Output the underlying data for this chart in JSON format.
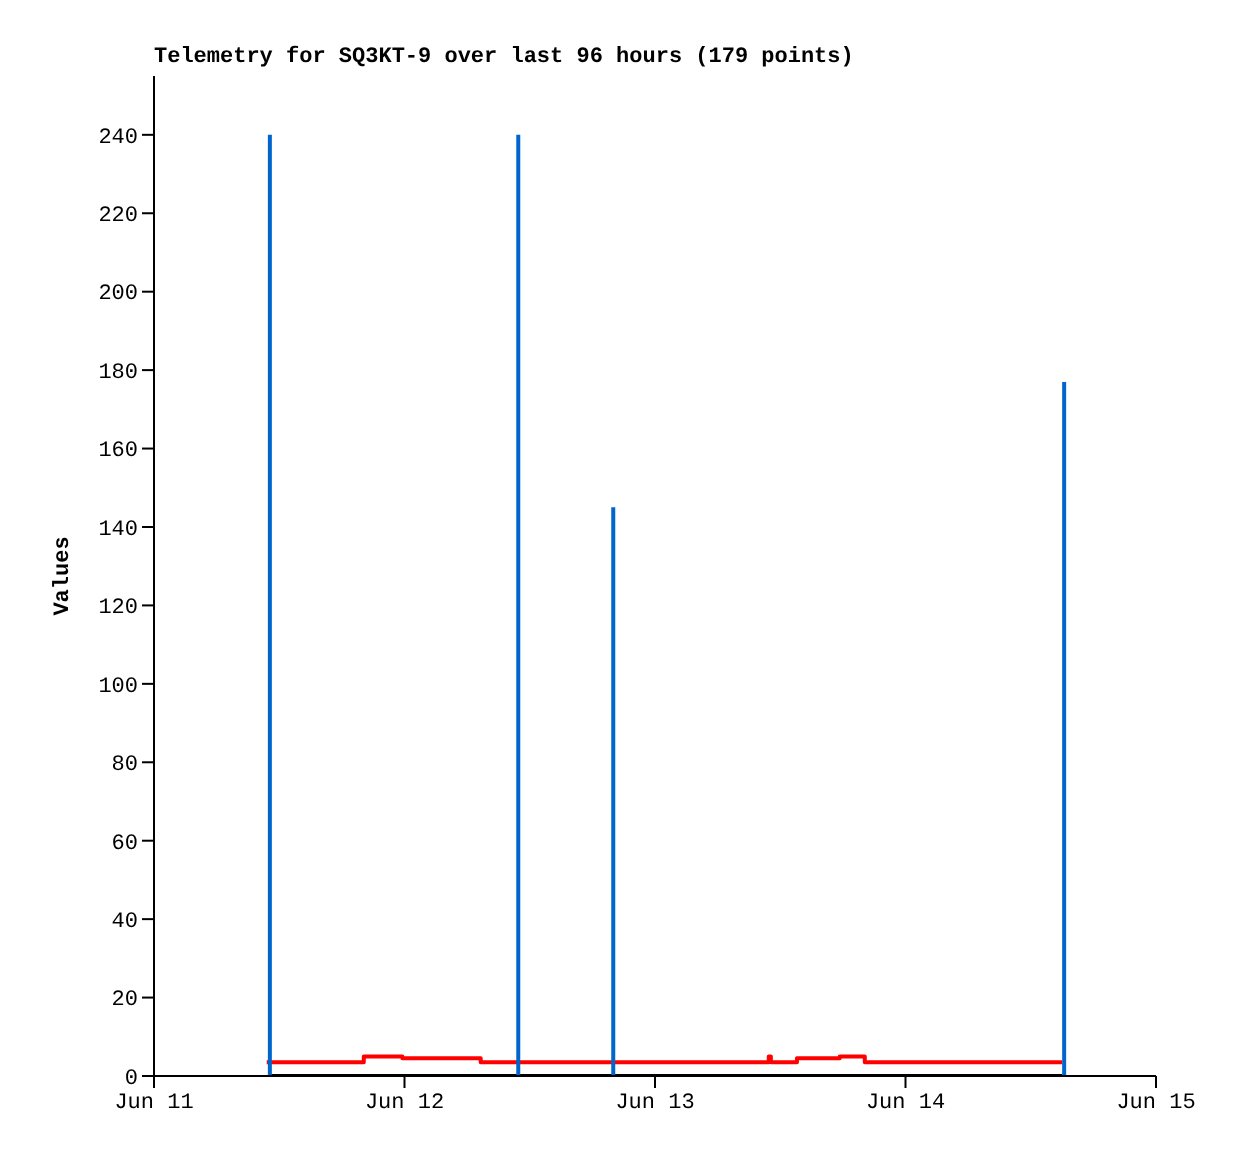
{
  "chart_data": {
    "type": "line",
    "title": "Telemetry for SQ3KT-9 over last 96 hours (179 points)",
    "ylabel": "Values",
    "xlim": [
      "--06-11",
      "--06-15"
    ],
    "xticks": [
      {
        "value": "--06-11",
        "label": "Jun 11"
      },
      {
        "value": "--06-12",
        "label": "Jun 12"
      },
      {
        "value": "--06-13",
        "label": "Jun 13"
      },
      {
        "value": "--06-14",
        "label": "Jun 14"
      },
      {
        "value": "--06-15",
        "label": "Jun 15"
      }
    ],
    "ylim": [
      0,
      255
    ],
    "yticks": [
      0,
      20,
      40,
      60,
      80,
      100,
      120,
      140,
      160,
      180,
      200,
      220,
      240
    ],
    "marker": "none",
    "series": [
      {
        "type": "step",
        "color": "#ff0000",
        "x": [
          "--06-11T10:48",
          "--06-11T20:06",
          "--06-11T23:48",
          "--06-12T07:18",
          "--06-13T10:54",
          "--06-13T11:06",
          "--06-13T13:36",
          "--06-13T17:42",
          "--06-13T20:06",
          "--06-14T15:00"
        ],
        "values": [
          3.5,
          5,
          4.5,
          3.5,
          5,
          3.5,
          4.5,
          5,
          3.5,
          3.5
        ]
      },
      {
        "color": "#000000",
        "x": [
          "--06-11T11:06",
          "--06-14T15:00"
        ],
        "values": [
          0,
          0
        ]
      },
      {
        "color": "#0066cc",
        "x": [
          "--06-11T11:06",
          "--06-11T11:06",
          "--06-11T11:12",
          "--06-12T10:54",
          "--06-12T10:54",
          "--06-12T11:00",
          "--06-12T20:00",
          "--06-12T20:00",
          "--06-12T20:06",
          "--06-14T15:12",
          "--06-14T15:12"
        ],
        "values": [
          0,
          240,
          null,
          0,
          240,
          null,
          0,
          145,
          null,
          0,
          177
        ]
      }
    ]
  }
}
